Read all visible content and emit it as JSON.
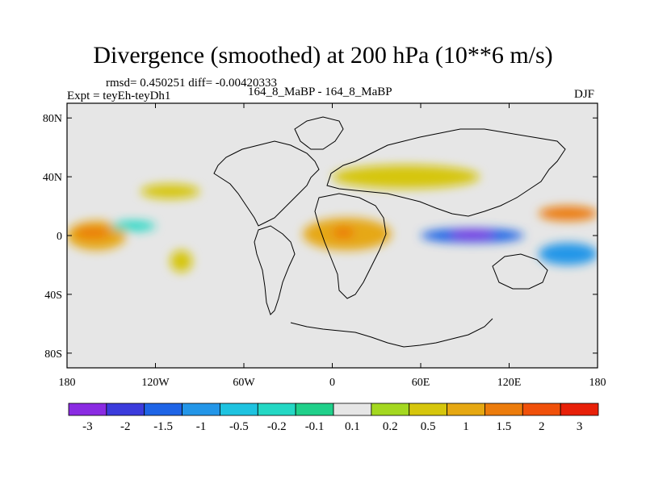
{
  "chart_data": {
    "type": "heatmap",
    "title": "Divergence (smoothed) at 200 hPa (10**6 m/s)",
    "stats": "rmsd= 0.450251 diff= -0.00420333",
    "experiment": "Expt = teyEh-teyDh1",
    "cases": "164_8_MaBP - 164_8_MaBP",
    "season": "DJF",
    "x_ticks": [
      "180",
      "120W",
      "60W",
      "0",
      "60E",
      "120E",
      "180"
    ],
    "y_ticks": [
      "80N",
      "40N",
      "0",
      "40S",
      "80S"
    ],
    "xlim": [
      -180,
      180
    ],
    "ylim": [
      -90,
      90
    ],
    "contour_levels": [
      "-3",
      "-2",
      "-1.5",
      "-1",
      "-0.5",
      "-0.2",
      "-0.1",
      "0.1",
      "0.2",
      "0.5",
      "1",
      "1.5",
      "2",
      "3"
    ],
    "colors": [
      "#8a2be2",
      "#3b3bdc",
      "#1e64e6",
      "#2396e8",
      "#1ec3e0",
      "#24d8c4",
      "#20d08a",
      "#e6e6e6",
      "#a4d820",
      "#d6c60c",
      "#e6a812",
      "#ec7c0c",
      "#f0500a",
      "#e82008"
    ],
    "field_regions": [
      {
        "lon": [
          -180,
          -140
        ],
        "lat": [
          -10,
          10
        ],
        "level": 10
      },
      {
        "lon": [
          -175,
          -150
        ],
        "lat": [
          -2,
          6
        ],
        "level": 11
      },
      {
        "lon": [
          -150,
          -120
        ],
        "lat": [
          3,
          10
        ],
        "level": 5
      },
      {
        "lon": [
          -130,
          -90
        ],
        "lat": [
          25,
          35
        ],
        "level": 9
      },
      {
        "lon": [
          -110,
          -95
        ],
        "lat": [
          -25,
          -10
        ],
        "level": 9
      },
      {
        "lon": [
          -20,
          40
        ],
        "lat": [
          -10,
          12
        ],
        "level": 10
      },
      {
        "lon": [
          0,
          15
        ],
        "lat": [
          -2,
          6
        ],
        "level": 11
      },
      {
        "lon": [
          60,
          130
        ],
        "lat": [
          -5,
          5
        ],
        "level": 2
      },
      {
        "lon": [
          80,
          110
        ],
        "lat": [
          -2,
          3
        ],
        "level": 0
      },
      {
        "lon": [
          0,
          100
        ],
        "lat": [
          32,
          48
        ],
        "level": 9
      },
      {
        "lon": [
          140,
          180
        ],
        "lat": [
          10,
          20
        ],
        "level": 11
      },
      {
        "lon": [
          140,
          180
        ],
        "lat": [
          -20,
          -5
        ],
        "level": 3
      }
    ]
  }
}
